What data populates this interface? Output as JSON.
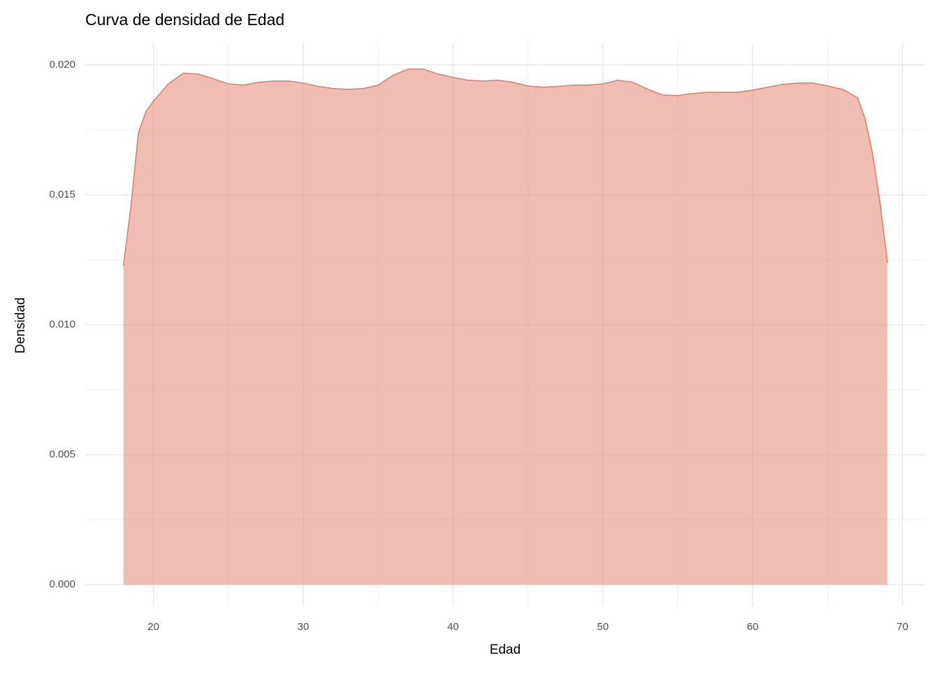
{
  "chart_data": {
    "type": "density",
    "title": "Curva de densidad de Edad",
    "x_label": "Edad",
    "y_label": "Densidad",
    "x": [
      18,
      18.5,
      19,
      19.5,
      20,
      21,
      22,
      23,
      24,
      25,
      26,
      27,
      28,
      29,
      30,
      31,
      32,
      33,
      34,
      35,
      36,
      37,
      38,
      39,
      40,
      41,
      42,
      43,
      44,
      45,
      46,
      47,
      48,
      49,
      50,
      51,
      52,
      53,
      54,
      55,
      56,
      57,
      58,
      59,
      60,
      61,
      62,
      63,
      64,
      65,
      66,
      67,
      67.5,
      68,
      68.5,
      69
    ],
    "values": [
      0.01228,
      0.01457,
      0.01739,
      0.0182,
      0.0186,
      0.01927,
      0.01968,
      0.01965,
      0.01946,
      0.01927,
      0.01922,
      0.01933,
      0.01938,
      0.01938,
      0.0193,
      0.01917,
      0.01909,
      0.01906,
      0.01909,
      0.01922,
      0.0196,
      0.01984,
      0.01984,
      0.01965,
      0.01952,
      0.01941,
      0.01938,
      0.01941,
      0.01933,
      0.01919,
      0.01914,
      0.01917,
      0.01922,
      0.01922,
      0.01927,
      0.01941,
      0.01933,
      0.01906,
      0.01884,
      0.01882,
      0.0189,
      0.01895,
      0.01895,
      0.01895,
      0.01903,
      0.01914,
      0.01925,
      0.0193,
      0.0193,
      0.01919,
      0.01906,
      0.01874,
      0.01793,
      0.01659,
      0.0147,
      0.01239
    ],
    "color": "#e07b65",
    "xlim": [
      15.45,
      71.55
    ],
    "ylim": [
      -0.00083,
      0.02083
    ],
    "xticks": [
      20,
      30,
      40,
      50,
      60,
      70
    ],
    "yticks": [
      {
        "value": 0,
        "label": "0.000"
      },
      {
        "value": 0.005,
        "label": "0.005"
      },
      {
        "value": 0.01,
        "label": "0.010"
      },
      {
        "value": 0.015,
        "label": "0.015"
      },
      {
        "value": 0.02,
        "label": "0.020"
      }
    ],
    "x_minor_grid": [
      25,
      35,
      45,
      55,
      65
    ],
    "y_minor_grid": [
      0.0025,
      0.0075,
      0.0125,
      0.0175
    ],
    "grid": true
  }
}
